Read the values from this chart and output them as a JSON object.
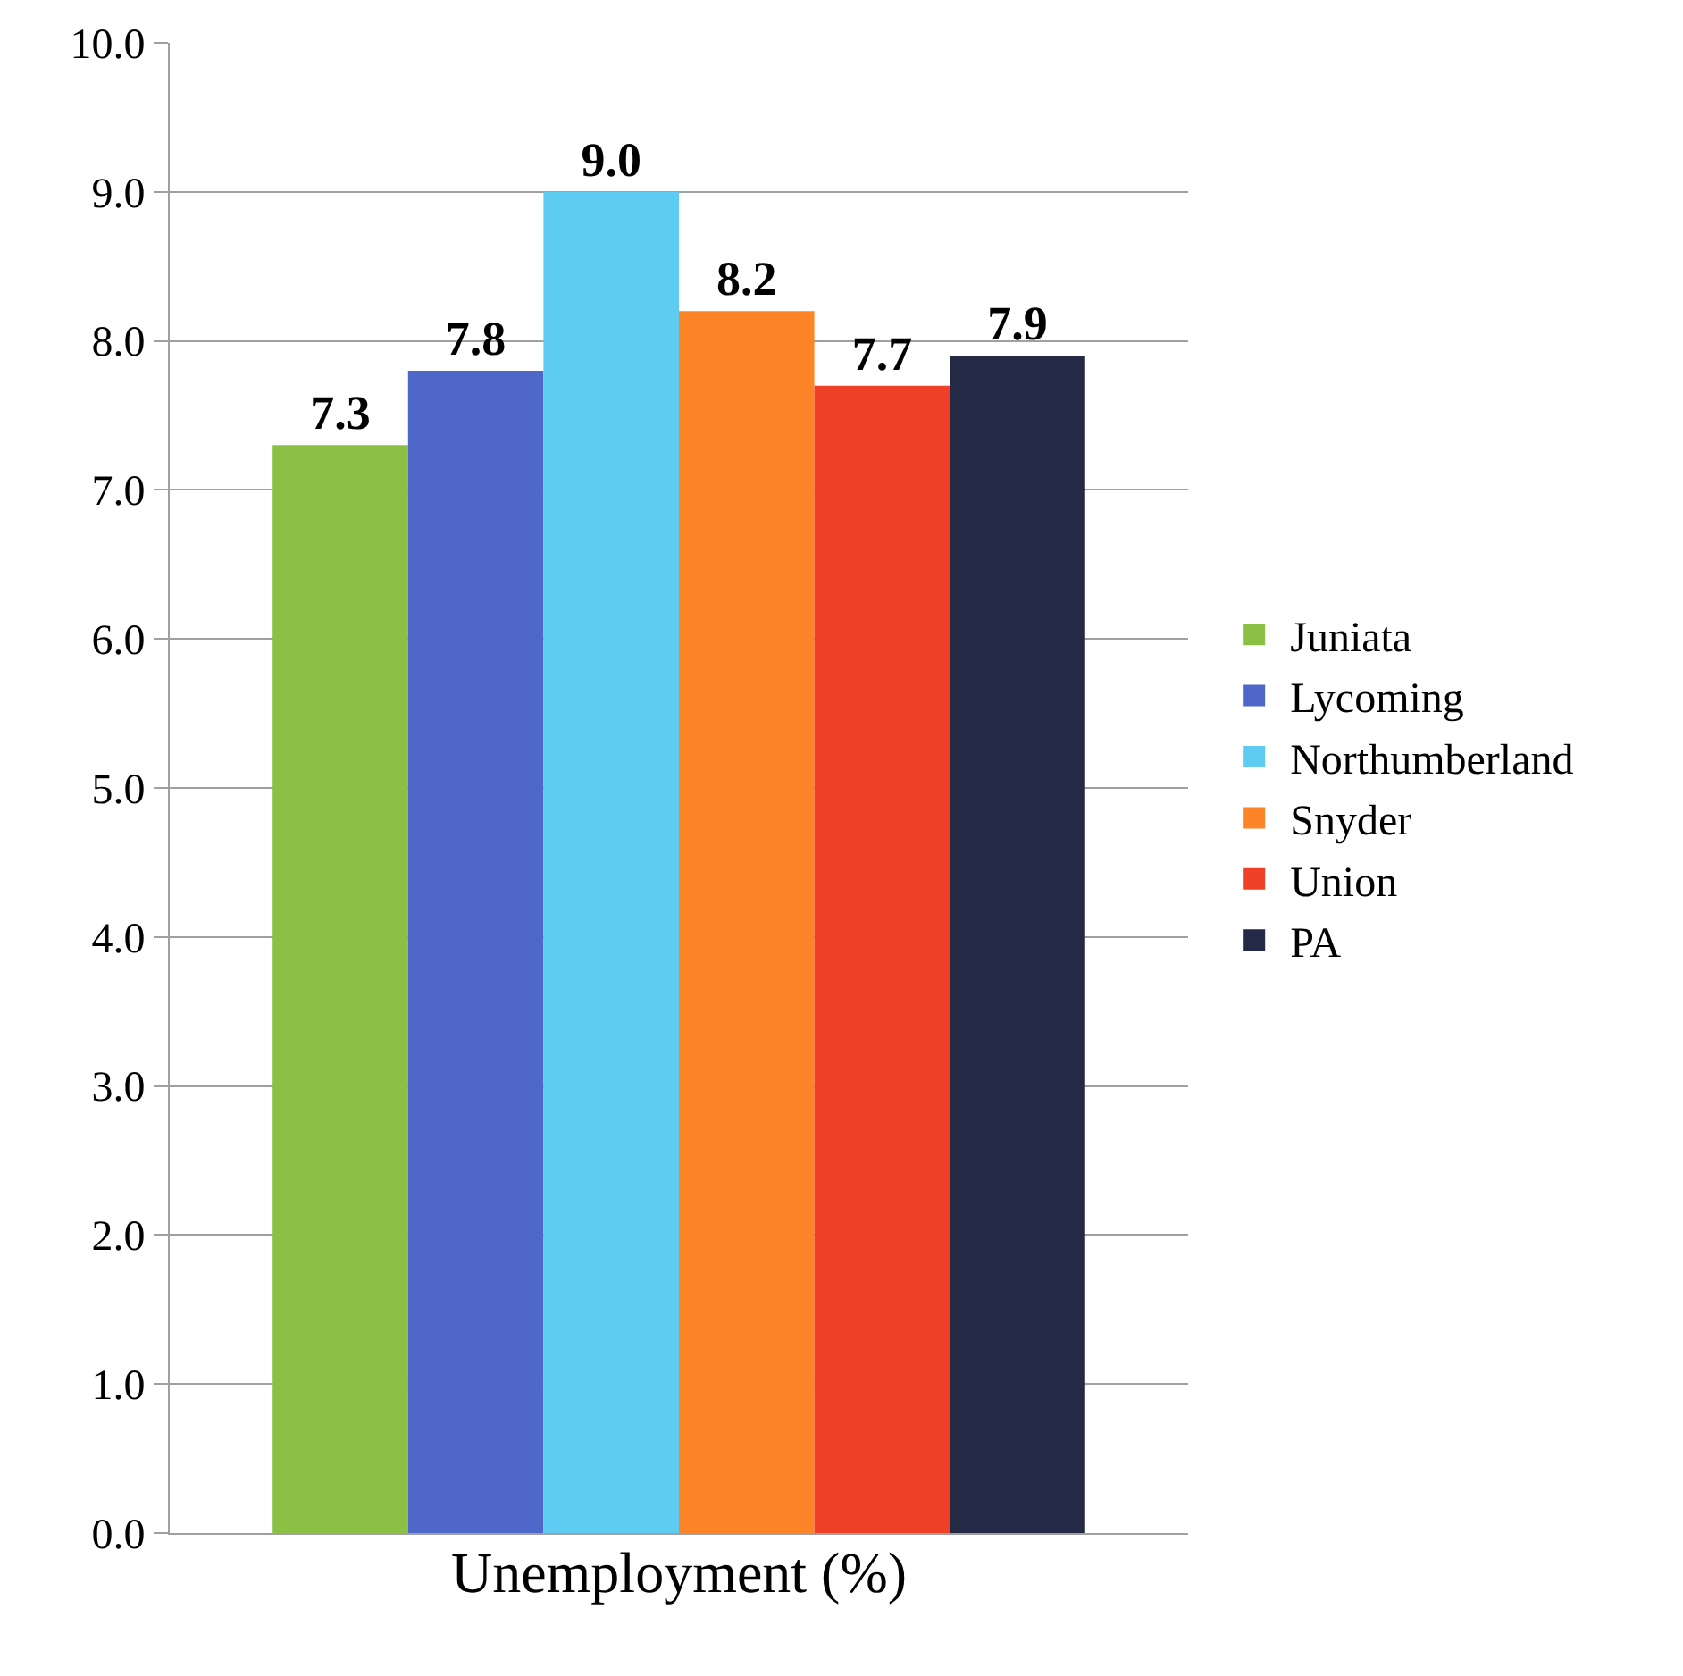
{
  "chart_data": {
    "type": "bar",
    "xlabel": "Unemployment (%)",
    "categories": [
      null,
      null,
      null,
      null,
      null,
      null
    ],
    "series": [
      {
        "name": "Juniata",
        "color": "#8bc045",
        "values": [
          7.3,
          null,
          null,
          null,
          null,
          null
        ],
        "value_labels": [
          "7.3",
          null,
          null,
          null,
          null,
          null
        ]
      },
      {
        "name": "Lycoming",
        "color": "#4e67c8",
        "values": [
          null,
          7.8,
          null,
          null,
          null,
          null
        ],
        "value_labels": [
          null,
          "7.8",
          null,
          null,
          null,
          null
        ]
      },
      {
        "name": "Northumberland",
        "color": "#5ecbf0",
        "values": [
          null,
          null,
          9.0,
          null,
          null,
          null
        ],
        "value_labels": [
          null,
          null,
          "9.0",
          null,
          null,
          null
        ]
      },
      {
        "name": "Snyder",
        "color": "#fe8527",
        "values": [
          null,
          null,
          null,
          8.2,
          null,
          null
        ],
        "value_labels": [
          null,
          null,
          null,
          "8.2",
          null,
          null
        ]
      },
      {
        "name": "Union",
        "color": "#ef4127",
        "values": [
          null,
          null,
          null,
          null,
          7.7,
          null
        ],
        "value_labels": [
          null,
          null,
          null,
          null,
          "7.7",
          null
        ]
      },
      {
        "name": "PA",
        "color": "#242945",
        "values": [
          null,
          null,
          null,
          null,
          null,
          7.9
        ],
        "value_labels": [
          null,
          null,
          null,
          null,
          null,
          "7.9"
        ]
      }
    ],
    "ylim": [
      0,
      10
    ],
    "yticks": [
      {
        "value": 0,
        "label": "0.0"
      },
      {
        "value": 1,
        "label": "1.0"
      },
      {
        "value": 2,
        "label": "2.0"
      },
      {
        "value": 3,
        "label": "3.0"
      },
      {
        "value": 4,
        "label": "4.0"
      },
      {
        "value": 5,
        "label": "5.0"
      },
      {
        "value": 6,
        "label": "6.0"
      },
      {
        "value": 7,
        "label": "7.0"
      },
      {
        "value": 8,
        "label": "8.0"
      },
      {
        "value": 9,
        "label": "9.0"
      },
      {
        "value": 10,
        "label": "10.0"
      }
    ],
    "tick_labels": "y",
    "grid": "y",
    "legend": "right"
  }
}
